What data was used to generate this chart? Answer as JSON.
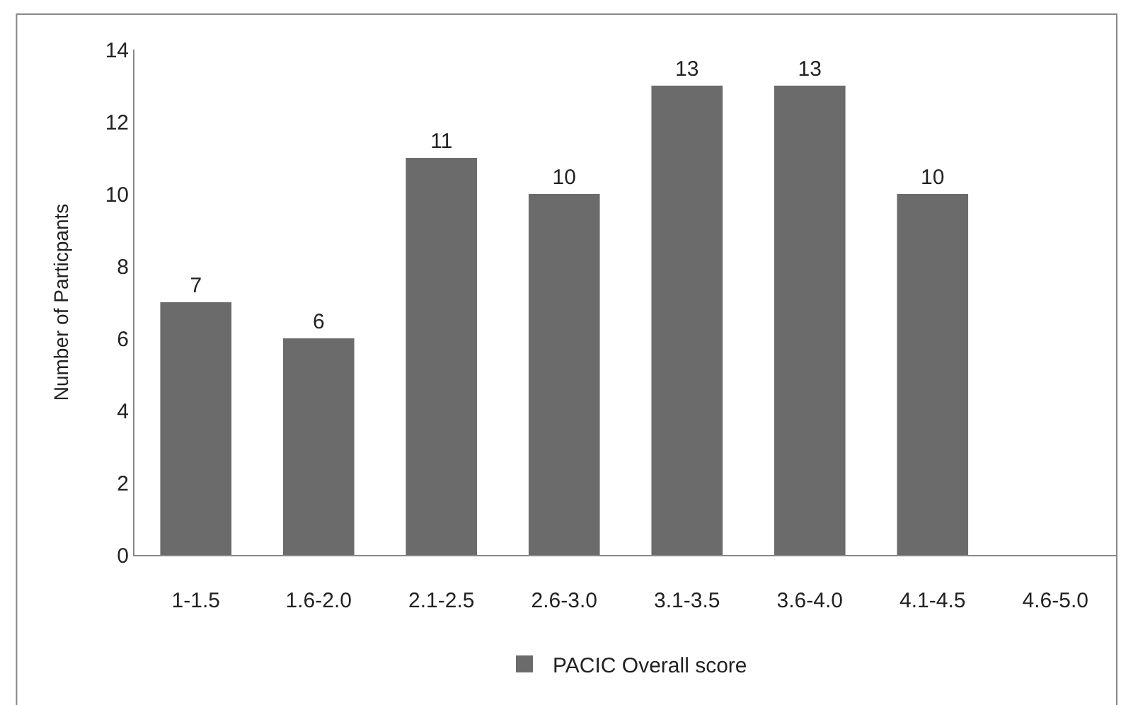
{
  "chart_data": {
    "type": "bar",
    "ylabel": "Number of Particpants",
    "categories": [
      "1-1.5",
      "1.6-2.0",
      "2.1-2.5",
      "2.6-3.0",
      "3.1-3.5",
      "3.6-4.0",
      "4.1-4.5",
      "4.6-5.0"
    ],
    "series": [
      {
        "name": "PACIC Overall score",
        "color": "#6b6b6b",
        "values": [
          7,
          6,
          11,
          10,
          13,
          13,
          10,
          0
        ],
        "value_labels": [
          "7",
          "6",
          "11",
          "10",
          "13",
          "13",
          "10",
          null
        ]
      }
    ],
    "ylim": [
      0,
      14
    ],
    "yticks": [
      0,
      2,
      4,
      6,
      8,
      10,
      12,
      14
    ],
    "grid": false,
    "legend": "bottom"
  }
}
